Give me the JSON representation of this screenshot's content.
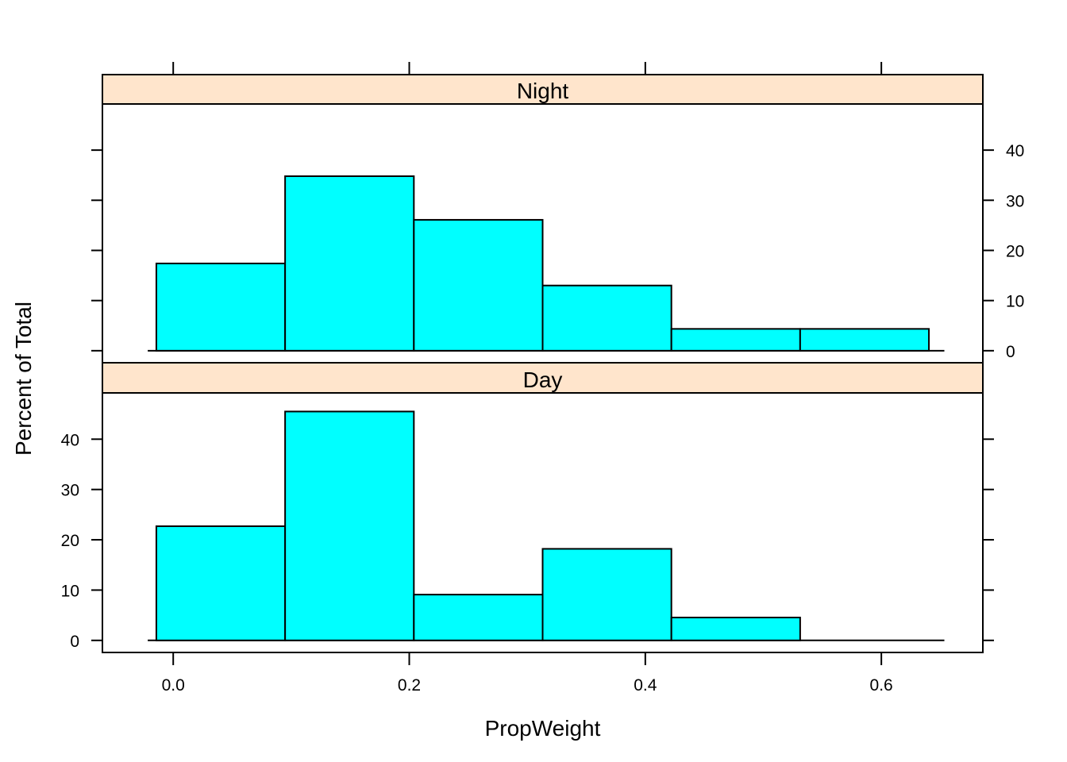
{
  "chart_data": {
    "type": "bar",
    "xlabel": "PropWeight",
    "ylabel": "Percent of Total",
    "x_ticks": [
      "0.0",
      "0.2",
      "0.4",
      "0.6"
    ],
    "x_tick_values": [
      0.0,
      0.2,
      0.4,
      0.6
    ],
    "y_ticks": [
      "0",
      "10",
      "20",
      "30",
      "40"
    ],
    "y_tick_values": [
      0,
      10,
      20,
      30,
      40
    ],
    "xlim": [
      -0.06,
      0.686
    ],
    "ylim": [
      -2.4,
      49.2
    ],
    "bin_edges": [
      -0.0143,
      0.0948,
      0.2039,
      0.313,
      0.4221,
      0.5312,
      0.6403
    ],
    "strip_color": "#ffe5cc",
    "bar_color": "#00ffff",
    "panels": [
      {
        "name": "Night",
        "values": [
          17.4,
          34.8,
          26.1,
          13.0,
          4.35,
          4.35
        ]
      },
      {
        "name": "Day",
        "values": [
          22.7,
          45.5,
          9.1,
          18.2,
          4.55,
          0
        ]
      }
    ]
  }
}
